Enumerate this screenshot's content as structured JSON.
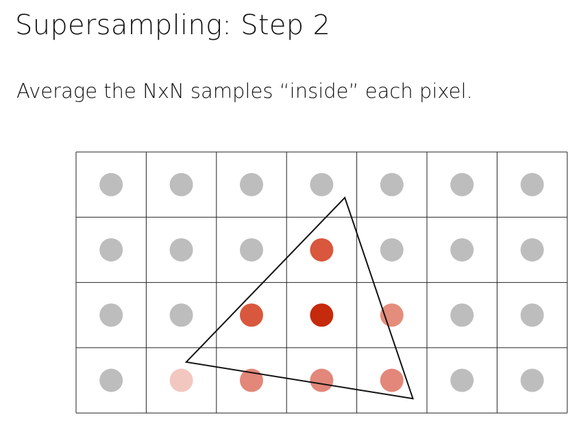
{
  "slide": {
    "title": "Supersampling: Step 2",
    "subtitle": "Average the NxN samples “inside” each pixel."
  },
  "grid": {
    "columns": 7,
    "rows": 4,
    "line_color": "#222222",
    "samples": [
      [
        "#bdbdbd",
        "#bdbdbd",
        "#bdbdbd",
        "#bdbdbd",
        "#bdbdbd",
        "#bdbdbd",
        "#bdbdbd"
      ],
      [
        "#bdbdbd",
        "#bdbdbd",
        "#bdbdbd",
        "#d9573c",
        "#bdbdbd",
        "#bdbdbd",
        "#bdbdbd"
      ],
      [
        "#bdbdbd",
        "#bdbdbd",
        "#d9583d",
        "#c52a0c",
        "#e58d7c",
        "#bdbdbd",
        "#bdbdbd"
      ],
      [
        "#bdbdbd",
        "#f2c7c0",
        "#e2877a",
        "#e2877a",
        "#e2877a",
        "#bdbdbd",
        "#bdbdbd"
      ]
    ]
  },
  "triangle": {
    "vertices_grid_units": [
      [
        3.83,
        0.7
      ],
      [
        1.57,
        3.22
      ],
      [
        4.8,
        3.78
      ]
    ],
    "stroke_color": "#111111"
  }
}
